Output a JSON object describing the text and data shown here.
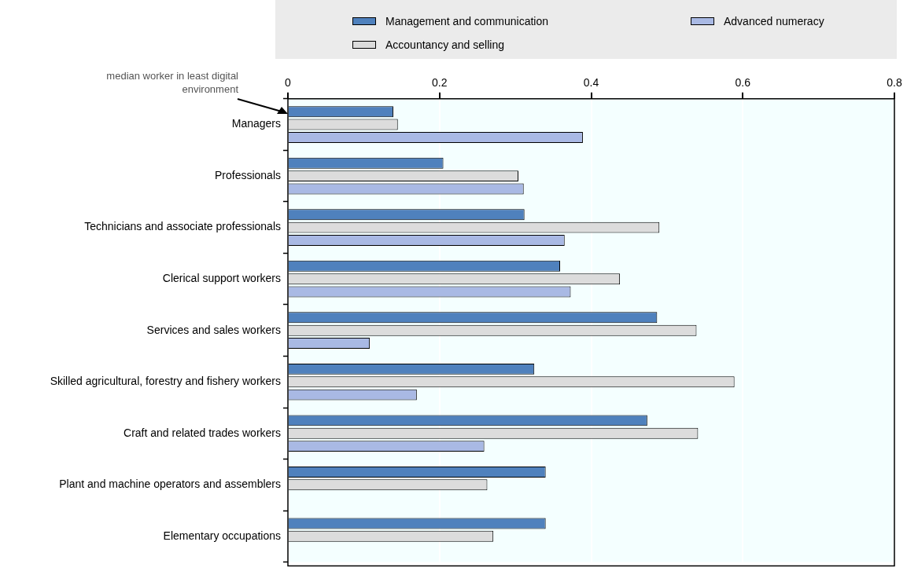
{
  "chart_data": {
    "type": "bar",
    "orientation": "horizontal",
    "categories": [
      "Managers",
      "Professionals",
      "Technicians and associate professionals",
      "Clerical support workers",
      "Services and sales workers",
      "Skilled agricultural, forestry and fishery workers",
      "Craft and related trades workers",
      "Plant and machine operators and assemblers",
      "Elementary occupations"
    ],
    "series": [
      {
        "name": "Management and communication",
        "color": "#4f81bd",
        "values": [
          0.139,
          0.205,
          0.312,
          0.359,
          0.487,
          0.325,
          0.474,
          0.34,
          0.34
        ]
      },
      {
        "name": "Accountancy and selling",
        "color": "#dcdcdc",
        "values": [
          0.145,
          0.304,
          0.49,
          0.438,
          0.539,
          0.589,
          0.541,
          0.263,
          0.271
        ]
      },
      {
        "name": "Advanced numeracy",
        "color": "#a9b9e4",
        "values": [
          0.389,
          0.311,
          0.365,
          0.373,
          0.108,
          0.17,
          0.259,
          null,
          null
        ]
      }
    ],
    "xlim": [
      0,
      0.8
    ],
    "xticks": [
      0,
      0.2,
      0.4,
      0.6,
      0.8
    ],
    "grid": "x",
    "legend": "top",
    "annotations": [
      "median worker in least digital environment"
    ]
  }
}
